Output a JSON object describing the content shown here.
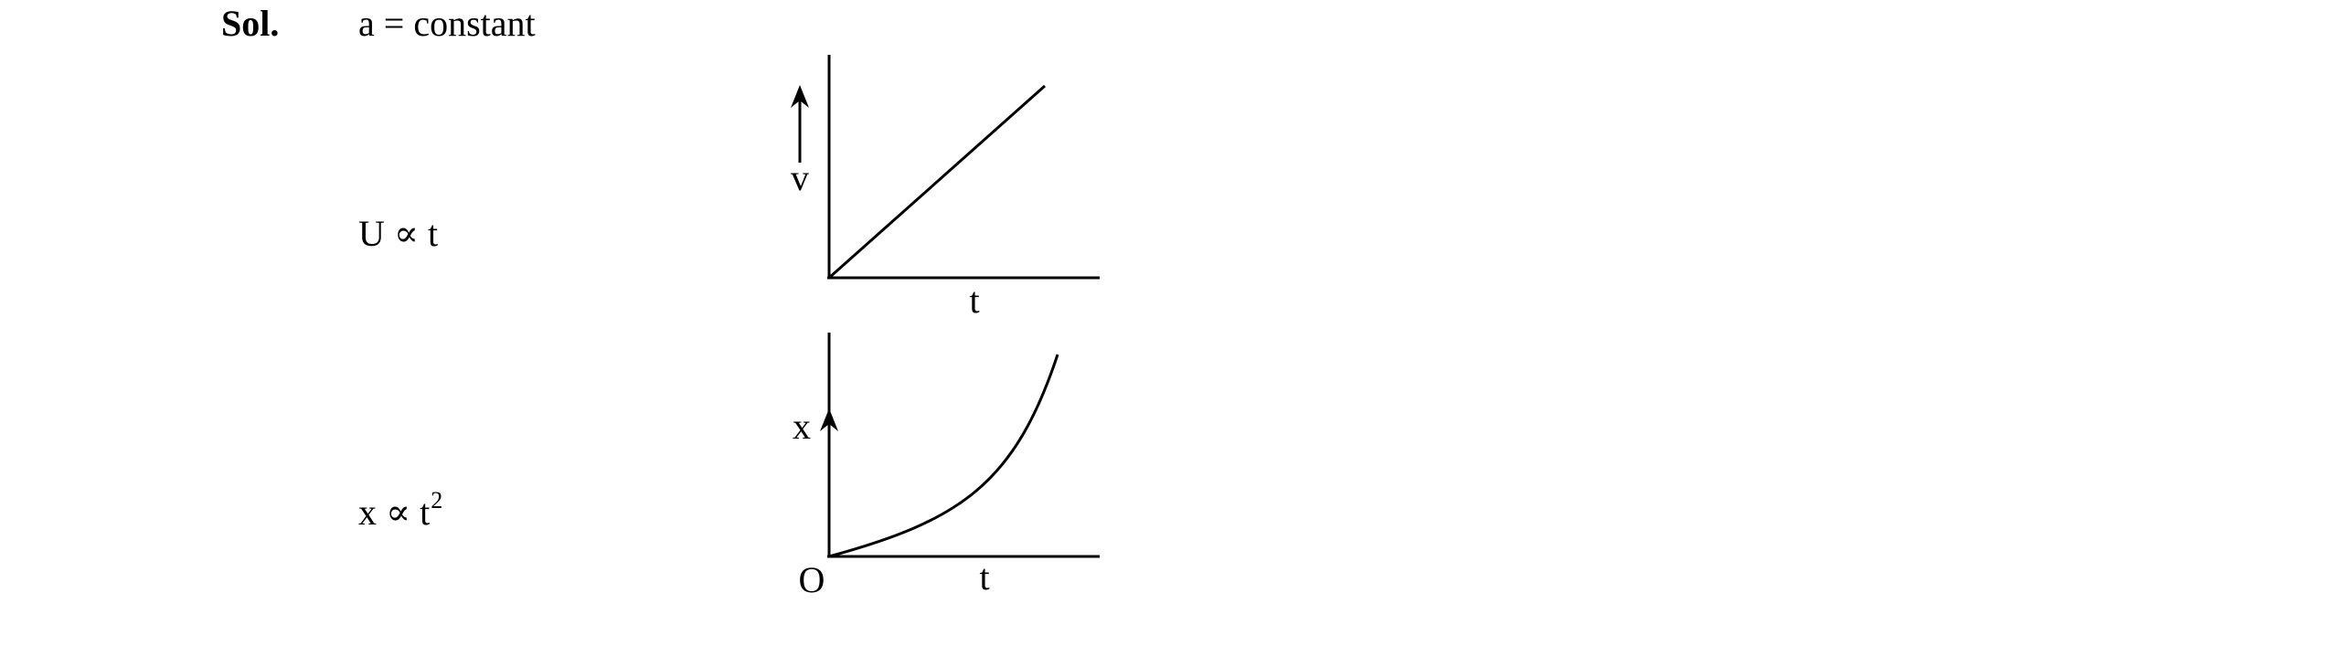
{
  "solution": {
    "label": "Sol.",
    "given": "a = constant"
  },
  "graphs": [
    {
      "relation": "U ∝ t",
      "ylabel": "v",
      "xlabel": "t",
      "origin_label": ""
    },
    {
      "relation_base": "x ∝ t",
      "relation_exponent": "2",
      "ylabel": "x",
      "xlabel": "t",
      "origin_label": "O"
    }
  ]
}
